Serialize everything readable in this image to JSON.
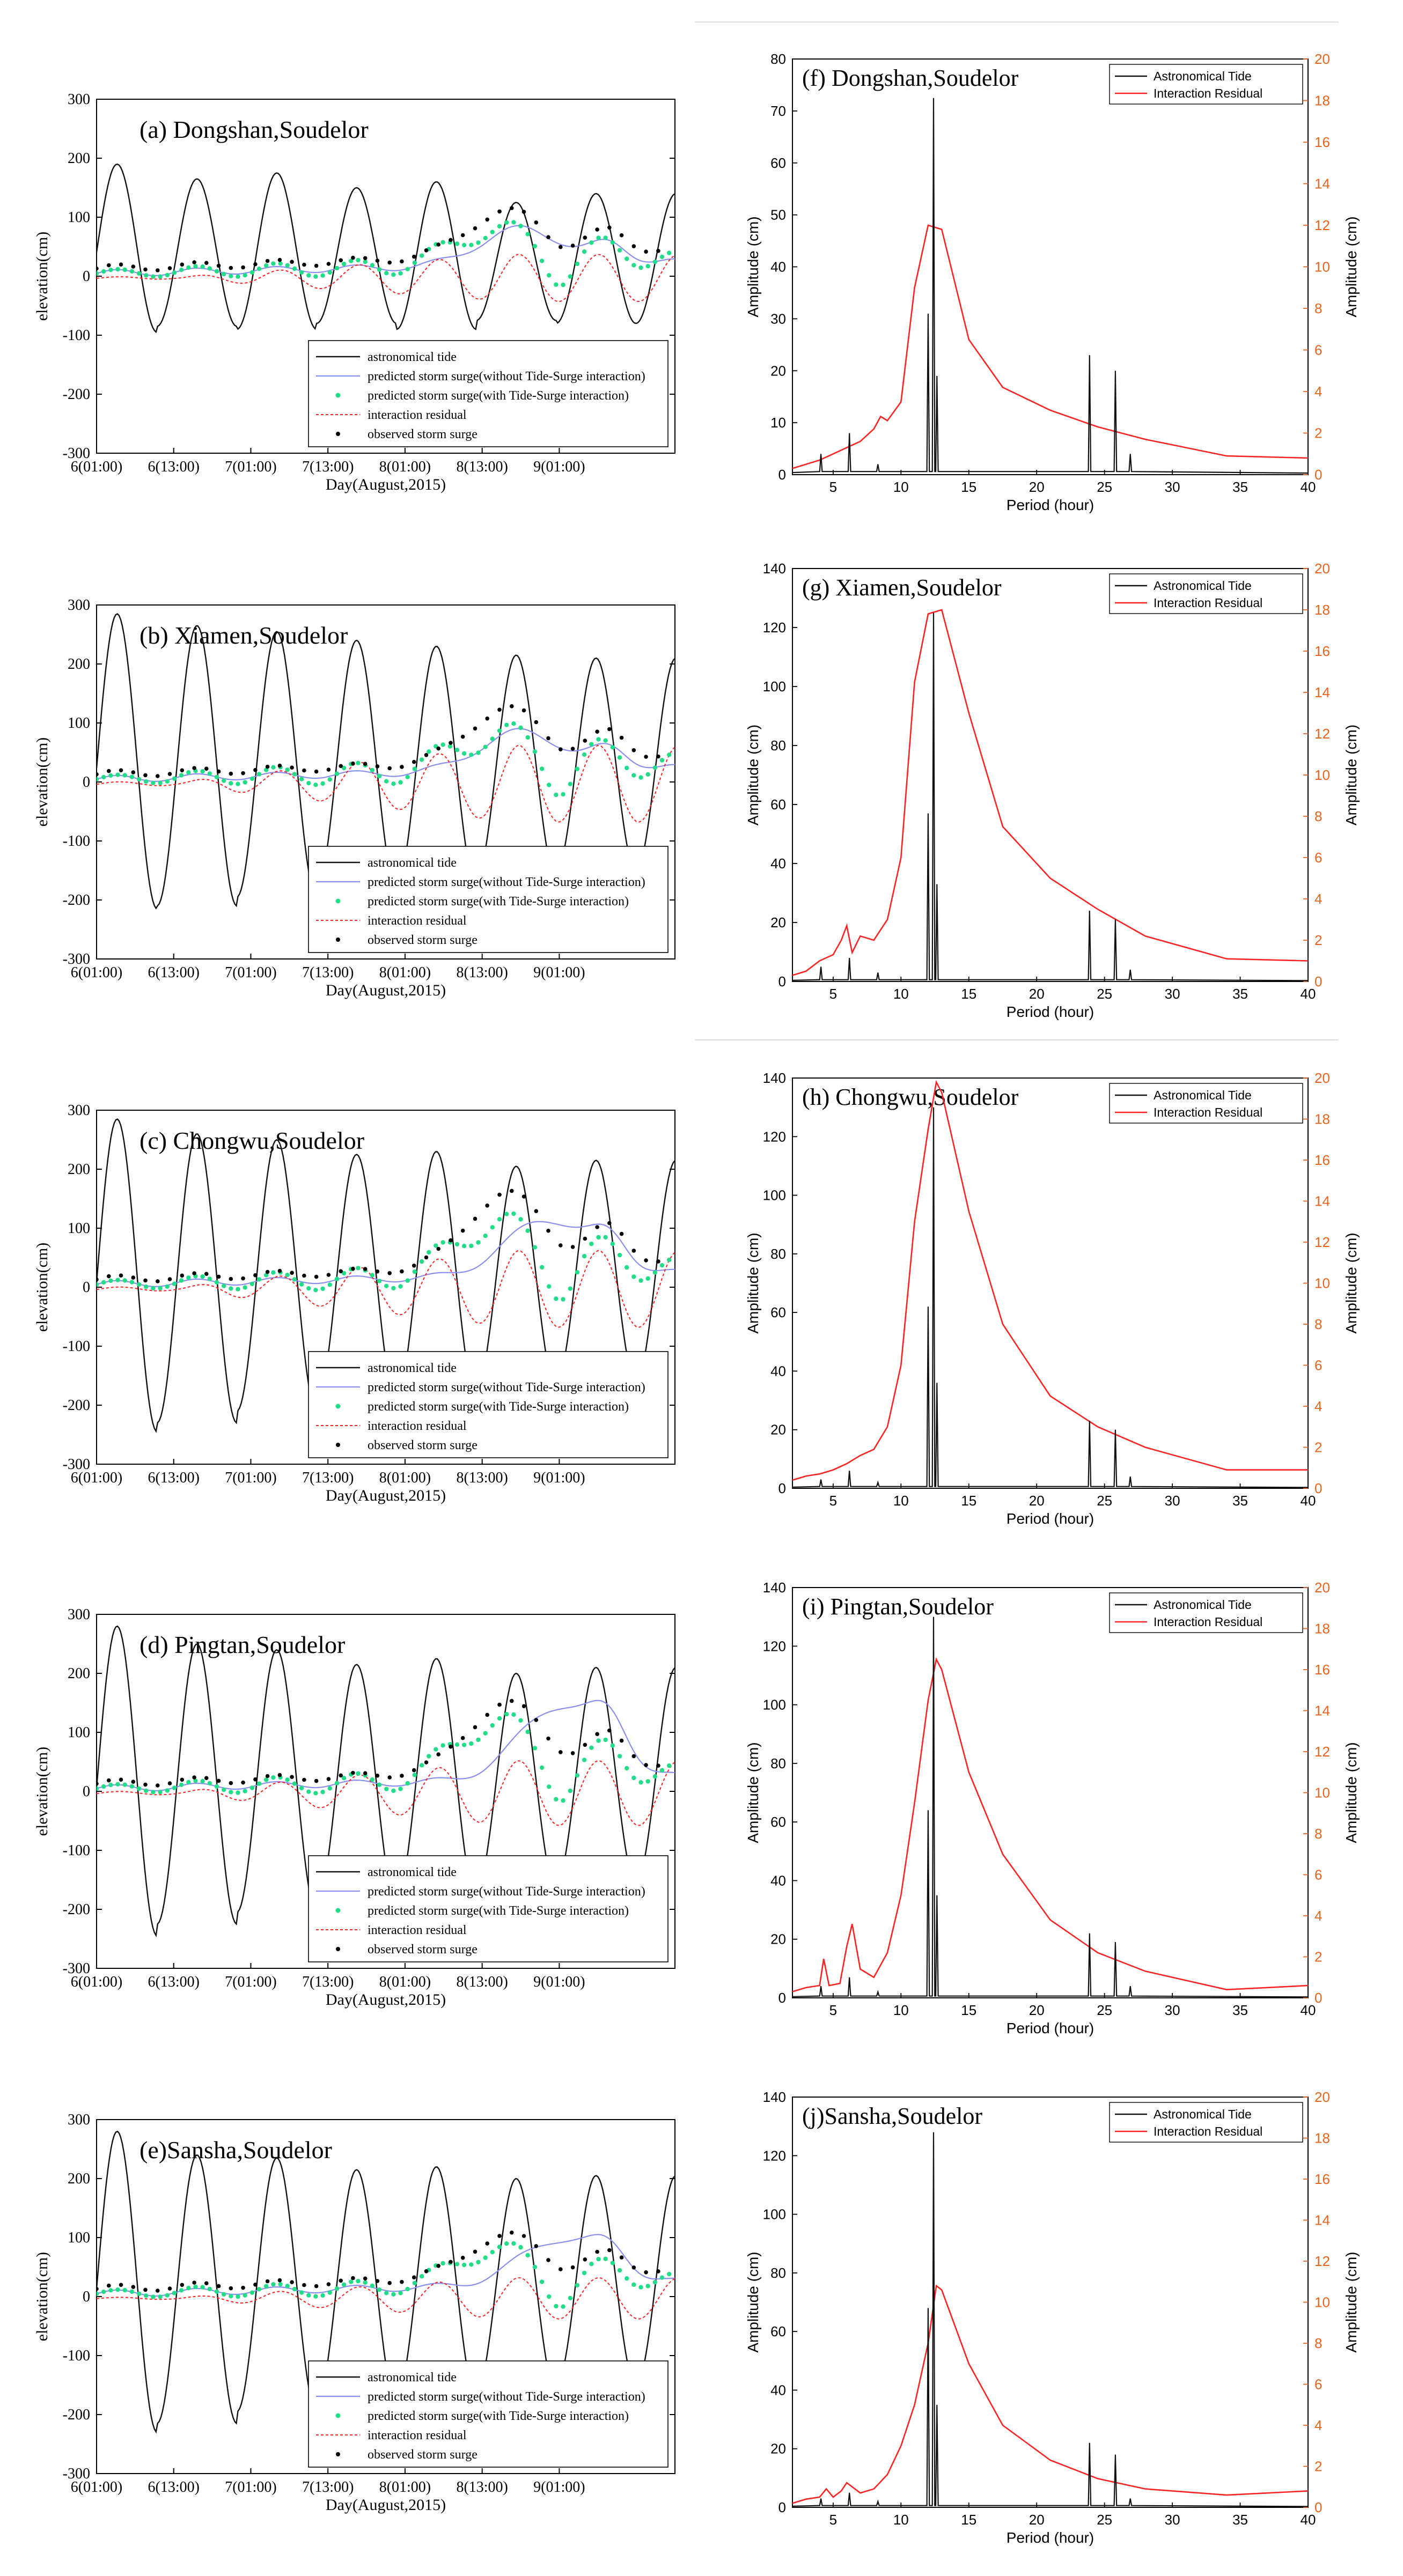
{
  "figure": {
    "description_free": true
  },
  "chart_data": [
    {
      "id": "a",
      "type": "line",
      "title": "(a) Dongshan,Soudelor",
      "xlabel": "Day(August,2015)",
      "ylabel": "elevation(cm)",
      "xlim": [
        0,
        90
      ],
      "ylim": [
        -300,
        300
      ],
      "xticks": [
        0,
        12,
        24,
        36,
        48,
        60,
        72
      ],
      "xtick_labels": [
        "6(01:00)",
        "6(13:00)",
        "7(01:00)",
        "7(13:00)",
        "8(01:00)",
        "8(13:00)",
        "9(01:00)"
      ],
      "yticks": [
        -300,
        -200,
        -100,
        0,
        100,
        200,
        300
      ],
      "legend_labels": [
        "astronomical tide",
        "predicted storm surge(without Tide-Surge interaction)",
        "predicted storm surge(with Tide-Surge interaction)",
        "interaction residual",
        "observed storm surge"
      ],
      "tide": {
        "amps": [
          190,
          165,
          175,
          150,
          160,
          125,
          140
        ],
        "bias": 35,
        "trough_depth": [
          95,
          85,
          90,
          80,
          90,
          75,
          80
        ]
      },
      "surge_peaks": {
        "with_peak": [
          62,
          100
        ],
        "with_dip": [
          70,
          50
        ],
        "without_peak": [
          66,
          95
        ],
        "obs_peak": [
          64,
          112
        ],
        "resid_amp": 40
      }
    },
    {
      "id": "b",
      "type": "line",
      "title": "(b) Xiamen,Soudelor",
      "xlabel": "Day(August,2015)",
      "ylabel": "elevation(cm)",
      "xlim": [
        0,
        90
      ],
      "ylim": [
        -300,
        300
      ],
      "xticks": [
        0,
        12,
        24,
        36,
        48,
        60,
        72
      ],
      "xtick_labels": [
        "6(01:00)",
        "6(13:00)",
        "7(01:00)",
        "7(13:00)",
        "8(01:00)",
        "8(13:00)",
        "9(01:00)"
      ],
      "yticks": [
        -300,
        -200,
        -100,
        0,
        100,
        200,
        300
      ],
      "legend_labels": [
        "astronomical tide",
        "predicted storm surge(without Tide-Surge interaction)",
        "predicted storm surge(with Tide-Surge interaction)",
        "interaction residual",
        "observed storm surge"
      ],
      "tide": {
        "amps": [
          285,
          265,
          255,
          240,
          230,
          215,
          210
        ],
        "trough_depth": [
          215,
          210,
          195,
          180,
          175,
          160,
          150
        ]
      },
      "surge_peaks": {
        "with_peak": [
          62,
          100
        ],
        "with_dip": [
          70,
          50
        ],
        "without_peak": [
          66,
          100
        ],
        "obs_peak": [
          64,
          125
        ],
        "resid_amp": 65
      }
    },
    {
      "id": "c",
      "type": "line",
      "title": "(c) Chongwu,Soudelor",
      "xlabel": "Day(August,2015)",
      "ylabel": "elevation(cm)",
      "xlim": [
        0,
        90
      ],
      "ylim": [
        -300,
        300
      ],
      "xticks": [
        0,
        12,
        24,
        36,
        48,
        60,
        72
      ],
      "xtick_labels": [
        "6(01:00)",
        "6(13:00)",
        "7(01:00)",
        "7(13:00)",
        "8(01:00)",
        "8(13:00)",
        "9(01:00)"
      ],
      "yticks": [
        -300,
        -200,
        -100,
        0,
        100,
        200,
        300
      ],
      "legend_labels": [
        "astronomical tide",
        "predicted storm surge(without Tide-Surge interaction)",
        "predicted storm surge(with Tide-Surge interaction)",
        "interaction residual",
        "observed storm surge"
      ],
      "tide": {
        "amps": [
          285,
          260,
          250,
          225,
          230,
          205,
          215
        ],
        "trough_depth": [
          245,
          230,
          210,
          195,
          185,
          170,
          160
        ]
      },
      "surge_peaks": {
        "with_peak": [
          62,
          130
        ],
        "with_dip": [
          70,
          60
        ],
        "without_peak": [
          70,
          130
        ],
        "obs_peak": [
          64,
          160
        ],
        "resid_amp": 65
      }
    },
    {
      "id": "d",
      "type": "line",
      "title": "(d) Pingtan,Soudelor",
      "xlabel": "Day(August,2015)",
      "ylabel": "elevation(cm)",
      "xlim": [
        0,
        90
      ],
      "ylim": [
        -300,
        300
      ],
      "xticks": [
        0,
        12,
        24,
        36,
        48,
        60,
        72
      ],
      "xtick_labels": [
        "6(01:00)",
        "6(13:00)",
        "7(01:00)",
        "7(13:00)",
        "8(01:00)",
        "8(13:00)",
        "9(01:00)"
      ],
      "yticks": [
        -300,
        -200,
        -100,
        0,
        100,
        200,
        300
      ],
      "legend_labels": [
        "astronomical tide",
        "predicted storm surge(without Tide-Surge interaction)",
        "predicted storm surge(with Tide-Surge interaction)",
        "interaction residual",
        "observed storm surge"
      ],
      "tide": {
        "amps": [
          280,
          250,
          240,
          215,
          225,
          200,
          210
        ],
        "trough_depth": [
          245,
          225,
          205,
          190,
          180,
          165,
          155
        ]
      },
      "surge_peaks": {
        "with_peak": [
          62,
          140
        ],
        "with_dip": [
          70,
          60
        ],
        "without_peak": [
          72,
          160
        ],
        "obs_peak": [
          64,
          150
        ],
        "resid_amp": 55
      }
    },
    {
      "id": "e",
      "type": "line",
      "title": "(e)Sansha,Soudelor",
      "xlabel": "Day(August,2015)",
      "ylabel": "elevation(cm)",
      "xlim": [
        0,
        90
      ],
      "ylim": [
        -300,
        300
      ],
      "xticks": [
        0,
        12,
        24,
        36,
        48,
        60,
        72
      ],
      "xtick_labels": [
        "6(01:00)",
        "6(13:00)",
        "7(01:00)",
        "7(13:00)",
        "8(01:00)",
        "8(13:00)",
        "9(01:00)"
      ],
      "yticks": [
        -300,
        -200,
        -100,
        0,
        100,
        200,
        300
      ],
      "legend_labels": [
        "astronomical tide",
        "predicted storm surge(without Tide-Surge interaction)",
        "predicted storm surge(with Tide-Surge interaction)",
        "interaction residual",
        "observed storm surge"
      ],
      "tide": {
        "amps": [
          280,
          240,
          235,
          215,
          220,
          200,
          205
        ],
        "trough_depth": [
          230,
          215,
          195,
          180,
          170,
          160,
          150
        ]
      },
      "surge_peaks": {
        "with_peak": [
          62,
          100
        ],
        "with_dip": [
          70,
          55
        ],
        "without_peak": [
          72,
          110
        ],
        "obs_peak": [
          64,
          105
        ],
        "resid_amp": 35
      }
    },
    {
      "id": "f",
      "type": "line",
      "title": "(f) Dongshan,Soudelor",
      "xlabel": "Period (hour)",
      "ylabel_left": "Amplitude (cm)",
      "ylabel_right": "Amplitude (cm)",
      "xlim": [
        2,
        40
      ],
      "ylim_left": [
        0,
        80
      ],
      "ylim_right": [
        0,
        20
      ],
      "xticks": [
        5,
        10,
        15,
        20,
        25,
        30,
        35,
        40
      ],
      "yticks_left": [
        0,
        10,
        20,
        30,
        40,
        50,
        60,
        70,
        80
      ],
      "yticks_right": [
        0,
        2,
        4,
        6,
        8,
        10,
        12,
        14,
        16,
        18,
        20
      ],
      "legend_labels": [
        "Astronomical Tide",
        "Interaction Residual"
      ],
      "tide_spikes": [
        [
          4.1,
          4
        ],
        [
          6.2,
          8
        ],
        [
          8.3,
          2
        ],
        [
          12.0,
          31
        ],
        [
          12.4,
          72.5
        ],
        [
          12.65,
          19
        ],
        [
          23.9,
          23
        ],
        [
          25.8,
          20
        ],
        [
          26.9,
          4
        ]
      ],
      "residual": {
        "x": [
          2,
          3,
          4,
          5,
          6,
          7,
          8,
          8.5,
          9,
          10,
          11,
          12,
          13,
          15,
          17.5,
          21,
          24.5,
          28,
          34,
          40
        ],
        "y": [
          0.3,
          0.5,
          0.7,
          1.0,
          1.3,
          1.6,
          2.2,
          2.8,
          2.6,
          3.5,
          9.0,
          12.0,
          11.8,
          6.5,
          4.2,
          3.1,
          2.3,
          1.7,
          0.9,
          0.8
        ]
      }
    },
    {
      "id": "g",
      "type": "line",
      "title": "(g) Xiamen,Soudelor",
      "xlabel": "Period (hour)",
      "ylabel_left": "Amplitude (cm)",
      "ylabel_right": "Amplitude (cm)",
      "xlim": [
        2,
        40
      ],
      "ylim_left": [
        0,
        140
      ],
      "ylim_right": [
        0,
        20
      ],
      "xticks": [
        5,
        10,
        15,
        20,
        25,
        30,
        35,
        40
      ],
      "yticks_left": [
        0,
        20,
        40,
        60,
        80,
        100,
        120,
        140
      ],
      "yticks_right": [
        0,
        2,
        4,
        6,
        8,
        10,
        12,
        14,
        16,
        18,
        20
      ],
      "legend_labels": [
        "Astronomical Tide",
        "Interaction Residual"
      ],
      "tide_spikes": [
        [
          4.1,
          5
        ],
        [
          6.2,
          8
        ],
        [
          8.3,
          3
        ],
        [
          12.0,
          57
        ],
        [
          12.4,
          125
        ],
        [
          12.65,
          33
        ],
        [
          23.9,
          24
        ],
        [
          25.8,
          21
        ],
        [
          26.9,
          4
        ]
      ],
      "residual": {
        "x": [
          2,
          3,
          4,
          5,
          5.6,
          6,
          6.4,
          7,
          8,
          9,
          10,
          11,
          12,
          13,
          15,
          17.5,
          21,
          24.5,
          28,
          34,
          40
        ],
        "y": [
          0.3,
          0.5,
          1.0,
          1.3,
          2.0,
          2.7,
          1.4,
          2.2,
          2.0,
          3.0,
          6.0,
          14.5,
          17.8,
          18.0,
          13.0,
          7.5,
          5.0,
          3.5,
          2.2,
          1.1,
          1.0
        ]
      }
    },
    {
      "id": "h",
      "type": "line",
      "title": "(h) Chongwu,Soudelor",
      "xlabel": "Period (hour)",
      "ylabel_left": "Amplitude (cm)",
      "ylabel_right": "Amplitude (cm)",
      "xlim": [
        2,
        40
      ],
      "ylim_left": [
        0,
        140
      ],
      "ylim_right": [
        0,
        20
      ],
      "xticks": [
        5,
        10,
        15,
        20,
        25,
        30,
        35,
        40
      ],
      "yticks_left": [
        0,
        20,
        40,
        60,
        80,
        100,
        120,
        140
      ],
      "yticks_right": [
        0,
        2,
        4,
        6,
        8,
        10,
        12,
        14,
        16,
        18,
        20
      ],
      "legend_labels": [
        "Astronomical Tide",
        "Interaction Residual"
      ],
      "tide_spikes": [
        [
          4.1,
          3
        ],
        [
          6.2,
          6
        ],
        [
          8.3,
          2
        ],
        [
          12.0,
          62
        ],
        [
          12.4,
          130
        ],
        [
          12.65,
          36
        ],
        [
          23.9,
          23
        ],
        [
          25.8,
          20
        ],
        [
          26.9,
          4
        ]
      ],
      "residual": {
        "x": [
          2,
          3,
          4,
          5,
          6,
          7,
          8,
          9,
          10,
          11,
          12,
          12.6,
          13,
          15,
          17.5,
          21,
          24.5,
          28,
          34,
          40
        ],
        "y": [
          0.4,
          0.6,
          0.7,
          0.9,
          1.2,
          1.6,
          1.9,
          3.0,
          6.0,
          13.0,
          17.5,
          19.8,
          19.3,
          13.5,
          8.0,
          4.5,
          3.0,
          2.0,
          0.9,
          0.9
        ]
      }
    },
    {
      "id": "i",
      "type": "line",
      "title": "(i) Pingtan,Soudelor",
      "xlabel": "Period (hour)",
      "ylabel_left": "Amplitude (cm)",
      "ylabel_right": "Amplitude (cm)",
      "xlim": [
        2,
        40
      ],
      "ylim_left": [
        0,
        140
      ],
      "ylim_right": [
        0,
        20
      ],
      "xticks": [
        5,
        10,
        15,
        20,
        25,
        30,
        35,
        40
      ],
      "yticks_left": [
        0,
        20,
        40,
        60,
        80,
        100,
        120,
        140
      ],
      "yticks_right": [
        0,
        2,
        4,
        6,
        8,
        10,
        12,
        14,
        16,
        18,
        20
      ],
      "legend_labels": [
        "Astronomical Tide",
        "Interaction Residual"
      ],
      "tide_spikes": [
        [
          4.1,
          4
        ],
        [
          6.2,
          7
        ],
        [
          8.3,
          2
        ],
        [
          12.0,
          64
        ],
        [
          12.4,
          130
        ],
        [
          12.65,
          35
        ],
        [
          23.9,
          22
        ],
        [
          25.8,
          19
        ],
        [
          26.9,
          4
        ]
      ],
      "residual": {
        "x": [
          2,
          3,
          4,
          4.3,
          4.7,
          5.5,
          6,
          6.4,
          7,
          8,
          9,
          10,
          11,
          12,
          12.6,
          13,
          15,
          17.5,
          21,
          24.5,
          28,
          34,
          40
        ],
        "y": [
          0.3,
          0.5,
          0.6,
          1.9,
          0.6,
          0.7,
          2.5,
          3.6,
          1.4,
          1.0,
          2.2,
          5.0,
          9.5,
          14.5,
          16.5,
          16.0,
          11.0,
          7.0,
          3.8,
          2.2,
          1.3,
          0.4,
          0.6
        ]
      }
    },
    {
      "id": "j",
      "type": "line",
      "title": "(j)Sansha,Soudelor",
      "xlabel": "Period (hour)",
      "ylabel_left": "Amplitude (cm)",
      "ylabel_right": "Amplitude (cm)",
      "xlim": [
        2,
        40
      ],
      "ylim_left": [
        0,
        140
      ],
      "ylim_right": [
        0,
        20
      ],
      "xticks": [
        5,
        10,
        15,
        20,
        25,
        30,
        35,
        40
      ],
      "yticks_left": [
        0,
        20,
        40,
        60,
        80,
        100,
        120,
        140
      ],
      "yticks_right": [
        0,
        2,
        4,
        6,
        8,
        10,
        12,
        14,
        16,
        18,
        20
      ],
      "legend_labels": [
        "Astronomical Tide",
        "Interaction Residual"
      ],
      "tide_spikes": [
        [
          4.1,
          3
        ],
        [
          6.2,
          5
        ],
        [
          8.3,
          2
        ],
        [
          12.0,
          68
        ],
        [
          12.4,
          128
        ],
        [
          12.65,
          35
        ],
        [
          23.9,
          22
        ],
        [
          25.8,
          18
        ],
        [
          26.9,
          3
        ]
      ],
      "residual": {
        "x": [
          2,
          3,
          4,
          4.5,
          5,
          5.6,
          6,
          7,
          8,
          9,
          10,
          11,
          12,
          12.6,
          13,
          15,
          17.5,
          21,
          24.5,
          28,
          34,
          40
        ],
        "y": [
          0.2,
          0.4,
          0.5,
          0.9,
          0.5,
          0.8,
          1.2,
          0.7,
          0.9,
          1.6,
          3.0,
          5.0,
          8.0,
          10.8,
          10.6,
          7.0,
          4.0,
          2.3,
          1.4,
          0.9,
          0.6,
          0.8
        ]
      }
    }
  ],
  "colors": {
    "tide": "#111111",
    "residual": "#ff2222",
    "without": "#8a8ef0",
    "with": "#22dd88",
    "observed": "#000000",
    "right_axis": "#e8641e"
  }
}
